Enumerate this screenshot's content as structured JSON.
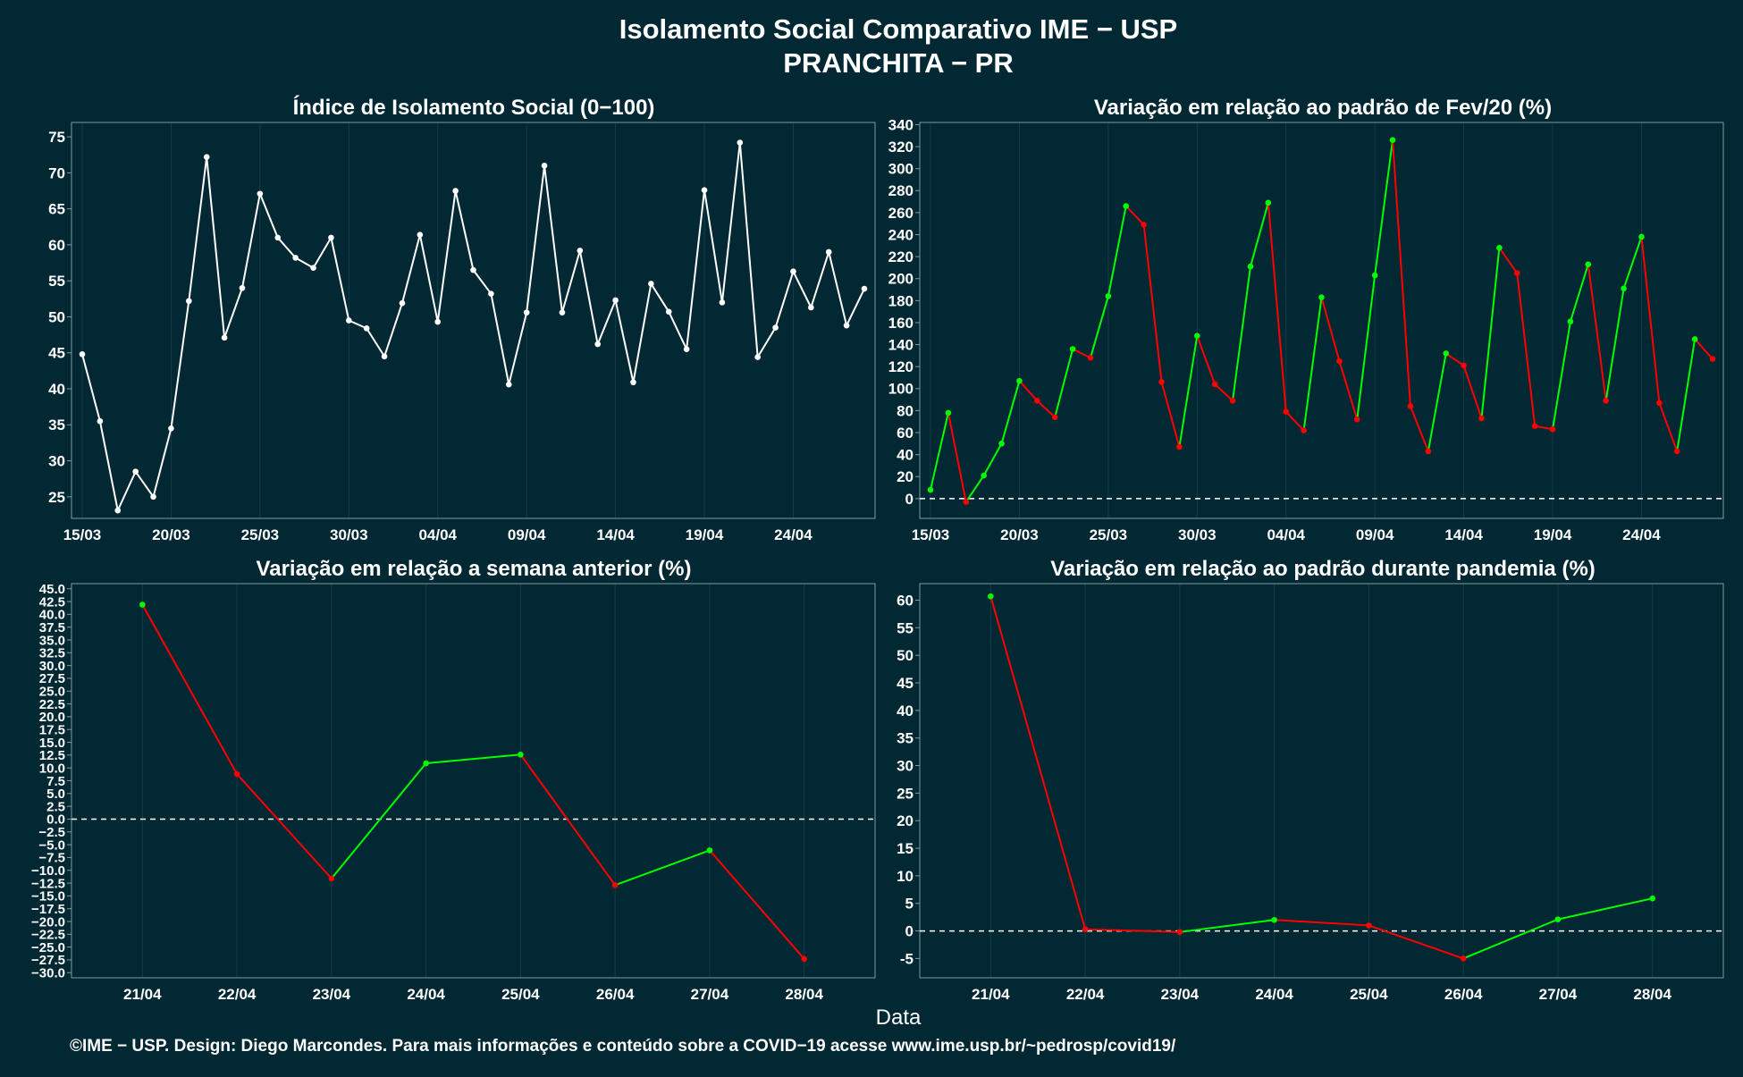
{
  "header": {
    "title": "Isolamento Social Comparativo IME − USP",
    "subtitle": "PRANCHITA − PR"
  },
  "xaxis_label": "Data",
  "footer": "©IME − USP. Design: Diego Marcondes. Para mais informações e conteúdo sobre a COVID−19 acesse www.ime.usp.br/~pedrosp/covid19/",
  "colors": {
    "background": "#022833",
    "white_series": "#ffffff",
    "positive": "#00ff00",
    "negative": "#ff0000"
  },
  "chart_data": [
    {
      "id": "isolation_index",
      "type": "line",
      "title": "Índice de Isolamento Social (0−100)",
      "x": [
        "15/03",
        "16/03",
        "17/03",
        "18/03",
        "19/03",
        "20/03",
        "21/03",
        "22/03",
        "23/03",
        "24/03",
        "25/03",
        "26/03",
        "27/03",
        "28/03",
        "29/03",
        "30/03",
        "31/03",
        "01/04",
        "02/04",
        "03/04",
        "04/04",
        "05/04",
        "06/04",
        "07/04",
        "08/04",
        "09/04",
        "10/04",
        "11/04",
        "12/04",
        "13/04",
        "14/04",
        "15/04",
        "16/04",
        "17/04",
        "18/04",
        "19/04",
        "20/04",
        "21/04",
        "22/04",
        "23/04",
        "24/04",
        "25/04",
        "26/04",
        "27/04",
        "28/04"
      ],
      "values": [
        44.8,
        35.5,
        23.1,
        28.5,
        25.0,
        34.5,
        52.2,
        72.2,
        47.1,
        54.0,
        67.1,
        61.0,
        58.2,
        56.8,
        61.0,
        49.5,
        48.4,
        44.5,
        51.9,
        61.4,
        49.3,
        67.5,
        56.5,
        53.2,
        40.6,
        50.6,
        71.0,
        50.6,
        59.2,
        46.2,
        52.3,
        40.9,
        54.6,
        50.7,
        45.5,
        67.6,
        52.0,
        74.2,
        44.4,
        48.5,
        56.3,
        51.3,
        59.0,
        48.8,
        53.9
      ],
      "ylim": [
        22,
        77
      ],
      "yticks": [
        25,
        30,
        35,
        40,
        45,
        50,
        55,
        60,
        65,
        70,
        75
      ],
      "xtick_labels": [
        "15/03",
        "20/03",
        "25/03",
        "30/03",
        "04/04",
        "09/04",
        "14/04",
        "19/04",
        "24/04"
      ]
    },
    {
      "id": "vs_feb",
      "type": "line",
      "title": "Variação em relação ao padrão de Fev/20 (%)",
      "x": [
        "15/03",
        "16/03",
        "17/03",
        "18/03",
        "19/03",
        "20/03",
        "21/03",
        "22/03",
        "23/03",
        "24/03",
        "25/03",
        "26/03",
        "27/03",
        "28/03",
        "29/03",
        "30/03",
        "31/03",
        "01/04",
        "02/04",
        "03/04",
        "04/04",
        "05/04",
        "06/04",
        "07/04",
        "08/04",
        "09/04",
        "10/04",
        "11/04",
        "12/04",
        "13/04",
        "14/04",
        "15/04",
        "16/04",
        "17/04",
        "18/04",
        "19/04",
        "20/04",
        "21/04",
        "22/04",
        "23/04",
        "24/04",
        "25/04",
        "26/04",
        "27/04",
        "28/04"
      ],
      "values": [
        8,
        78,
        -3,
        21,
        50,
        107,
        89,
        74,
        136,
        128,
        184,
        266,
        249,
        106,
        47,
        148,
        104,
        89,
        211,
        269,
        79,
        62,
        183,
        125,
        72,
        203,
        326,
        84,
        43,
        132,
        121,
        73,
        228,
        205,
        66,
        63,
        161,
        213,
        89,
        191,
        238,
        87,
        43,
        145,
        127
      ],
      "ylim": [
        -18,
        342
      ],
      "yticks": [
        0,
        20,
        40,
        60,
        80,
        100,
        120,
        140,
        160,
        180,
        200,
        220,
        240,
        260,
        280,
        300,
        320,
        340
      ],
      "xtick_labels": [
        "15/03",
        "20/03",
        "25/03",
        "30/03",
        "04/04",
        "09/04",
        "14/04",
        "19/04",
        "24/04"
      ],
      "zero_line": true
    },
    {
      "id": "vs_prev_week",
      "type": "line",
      "title": "Variação em relação a semana anterior (%)",
      "x": [
        "21/04",
        "22/04",
        "23/04",
        "24/04",
        "25/04",
        "26/04",
        "27/04",
        "28/04"
      ],
      "values": [
        41.9,
        8.8,
        -11.6,
        10.9,
        12.6,
        -12.9,
        -6.1,
        -27.3
      ],
      "ylim": [
        -31,
        46
      ],
      "yticks": [
        -30.0,
        -27.5,
        -25.0,
        -22.5,
        -20.0,
        -17.5,
        -15.0,
        -12.5,
        -10.0,
        -7.5,
        -5.0,
        -2.5,
        0.0,
        2.5,
        5.0,
        7.5,
        10.0,
        12.5,
        15.0,
        17.5,
        20.0,
        22.5,
        25.0,
        27.5,
        30.0,
        32.5,
        35.0,
        37.5,
        40.0,
        42.5,
        45.0
      ],
      "ytick_labels": [
        "−30.0",
        "−27.5",
        "−25.0",
        "−22.5",
        "−20.0",
        "−17.5",
        "−15.0",
        "−12.5",
        "−10.0",
        "−7.5",
        "−5.0",
        "−2.5",
        "0.0",
        "2.5",
        "5.0",
        "7.5",
        "10.0",
        "12.5",
        "15.0",
        "17.5",
        "20.0",
        "22.5",
        "25.0",
        "27.5",
        "30.0",
        "32.5",
        "35.0",
        "37.5",
        "40.0",
        "42.5",
        "45.0"
      ],
      "zero_line": true
    },
    {
      "id": "vs_pandemic",
      "type": "line",
      "title": "Variação em relação ao padrão durante pandemia (%)",
      "x": [
        "21/04",
        "22/04",
        "23/04",
        "24/04",
        "25/04",
        "26/04",
        "27/04",
        "28/04"
      ],
      "values": [
        60.7,
        0.3,
        -0.2,
        2.0,
        1.0,
        -5.0,
        2.1,
        5.9
      ],
      "ylim": [
        -8.5,
        63
      ],
      "yticks": [
        -5,
        0,
        5,
        10,
        15,
        20,
        25,
        30,
        35,
        40,
        45,
        50,
        55,
        60
      ],
      "zero_line": true
    }
  ]
}
